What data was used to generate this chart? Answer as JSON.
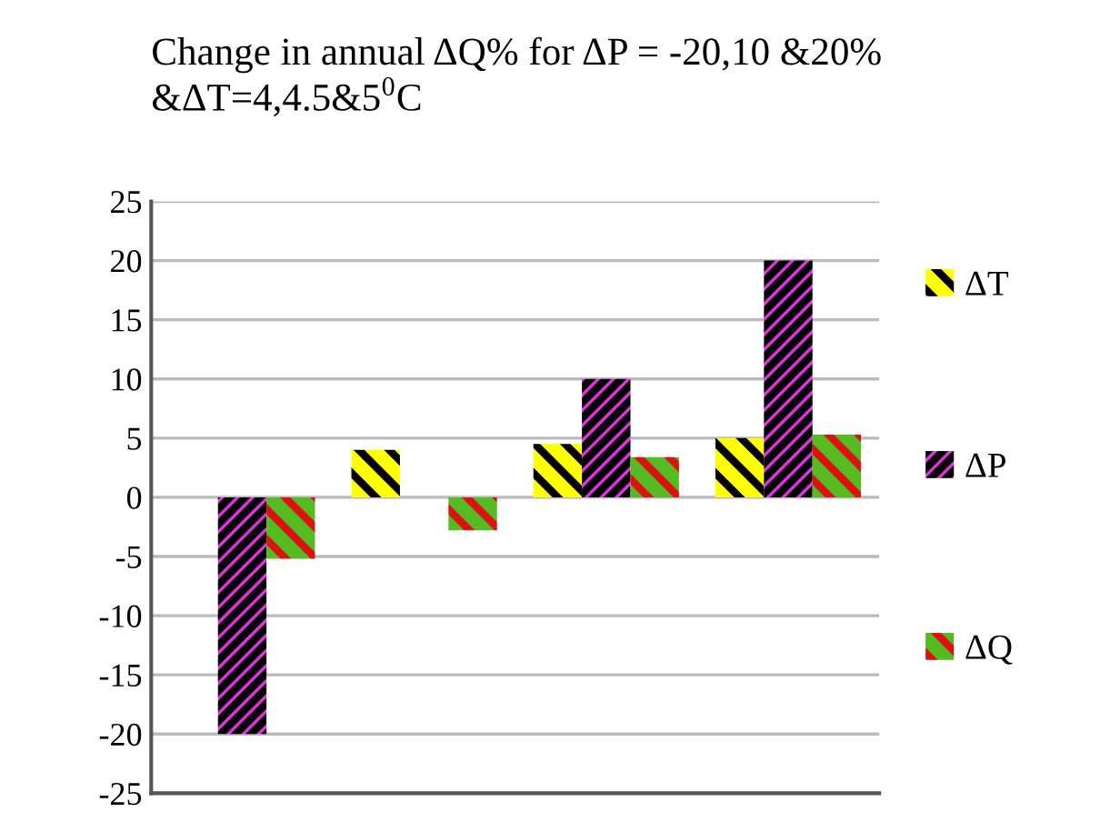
{
  "chart_data": {
    "type": "bar",
    "title": "Change in annual ΔQ% for ΔP = -20,10 &20% &ΔT=4,4.5&5$^{0}$C",
    "categories": [
      null,
      null,
      null,
      null
    ],
    "series": [
      {
        "name": "ΔT",
        "color": "#ffff00",
        "values": [
          null,
          4,
          4.5,
          5
        ]
      },
      {
        "name": "ΔP",
        "color": "#dd33dd",
        "values": [
          -20,
          null,
          10,
          20
        ]
      },
      {
        "name": "ΔQ",
        "color": "#55bb22",
        "values": [
          -5.2,
          -2.8,
          3.4,
          5.3
        ]
      }
    ],
    "ylim": [
      -25,
      25
    ],
    "yticks": [
      -25,
      -20,
      -15,
      -10,
      -5,
      0,
      5,
      10,
      15,
      20,
      25
    ],
    "grid": "y",
    "legend": "right",
    "tick_labels": "y"
  }
}
